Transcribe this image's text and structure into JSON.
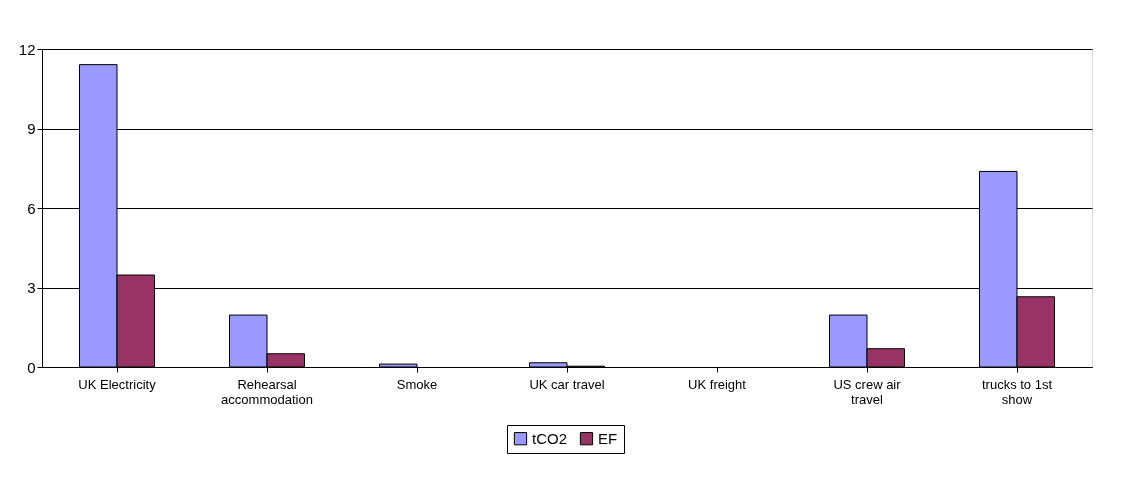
{
  "chart_data": {
    "type": "bar",
    "categories": [
      "UK Electricity",
      "Rehearsal accommodation",
      "Smoke",
      "UK car travel",
      "UK freight",
      "US crew air travel",
      "trucks to 1st show"
    ],
    "series": [
      {
        "name": "tCO2",
        "color": "#9999ff",
        "values": [
          11.41,
          1.96,
          0.11,
          0.16,
          0,
          1.96,
          7.38
        ]
      },
      {
        "name": "EF",
        "color": "#993366",
        "values": [
          3.47,
          0.5,
          0,
          0.03,
          0,
          0.69,
          2.65
        ]
      }
    ],
    "ylim": [
      0,
      12
    ],
    "yticks": [
      0,
      3,
      6,
      9,
      12
    ],
    "grid": "y",
    "legend": "bottom"
  }
}
